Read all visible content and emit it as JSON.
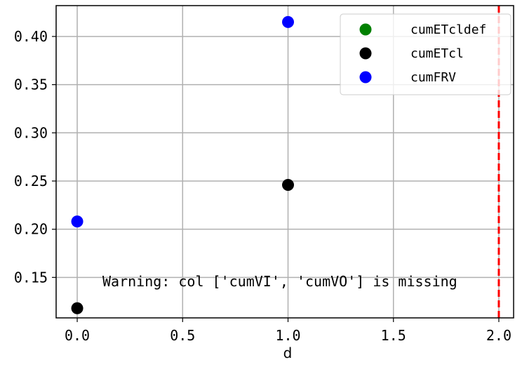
{
  "chart_data": {
    "type": "scatter",
    "title": "",
    "xlabel": "d",
    "ylabel": "",
    "xlim": [
      -0.1,
      2.07
    ],
    "ylim": [
      0.108,
      0.432
    ],
    "xticks": [
      0.0,
      0.5,
      1.0,
      1.5,
      2.0
    ],
    "xtick_labels": [
      "0.0",
      "0.5",
      "1.0",
      "1.5",
      "2.0"
    ],
    "yticks": [
      0.15,
      0.2,
      0.25,
      0.3,
      0.35,
      0.4
    ],
    "ytick_labels": [
      "0.15",
      "0.20",
      "0.25",
      "0.30",
      "0.35",
      "0.40"
    ],
    "grid": true,
    "legend_position": "top-right",
    "series": [
      {
        "name": "cumETcldef",
        "color": "#008000",
        "points": []
      },
      {
        "name": "cumETcl",
        "color": "#000000",
        "points": [
          [
            0.0,
            0.118
          ],
          [
            1.0,
            0.246
          ]
        ]
      },
      {
        "name": "cumFRV",
        "color": "#0000ff",
        "points": [
          [
            0.0,
            0.208
          ],
          [
            1.0,
            0.415
          ]
        ]
      }
    ],
    "vline": {
      "x": 2.0,
      "color": "#ff0000",
      "style": "dashed"
    },
    "annotation": "Warning: col ['cumVI', 'cumVO'] is missing"
  }
}
